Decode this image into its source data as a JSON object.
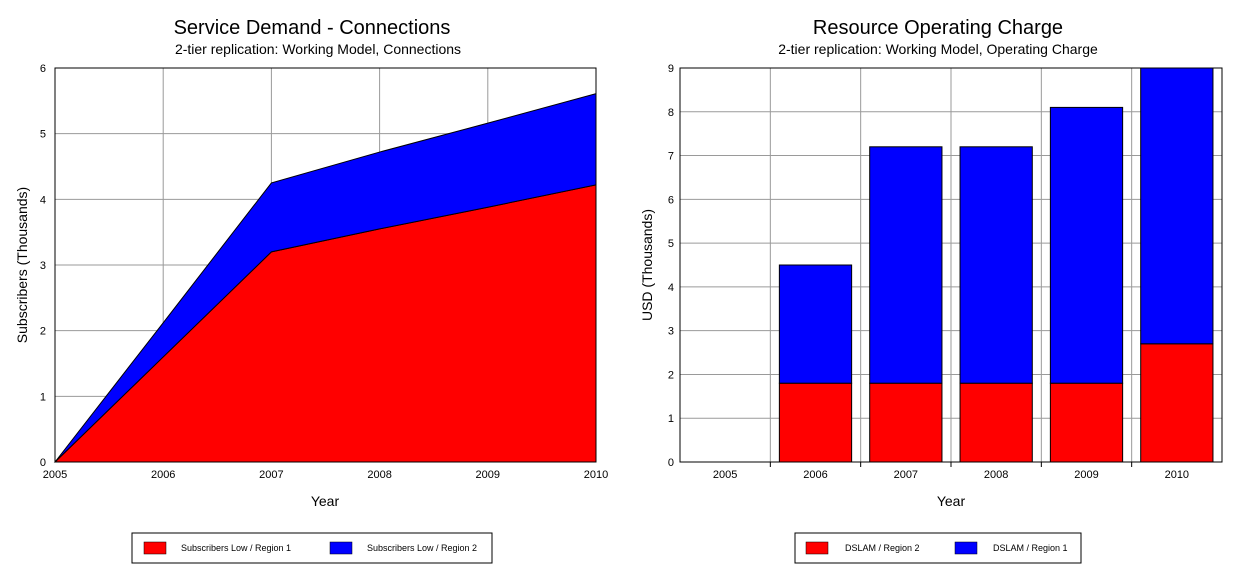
{
  "chart_data": [
    {
      "type": "area",
      "title": "Service Demand - Connections",
      "subtitle": "2-tier replication: Working Model, Connections",
      "xlabel": "Year",
      "ylabel": "Subscribers  (Thousands)",
      "x": [
        "2005",
        "2006",
        "2007",
        "2008",
        "2009",
        "2010"
      ],
      "ylim": [
        0,
        6
      ],
      "yticks": [
        "0",
        "1",
        "2",
        "3",
        "4",
        "5",
        "6"
      ],
      "stacked": true,
      "grid": true,
      "legend_position": "bottom",
      "series": [
        {
          "name": "Subscribers Low / Region 1",
          "color": "#ff0000",
          "values": [
            0,
            1.6,
            3.2,
            3.55,
            3.88,
            4.22
          ]
        },
        {
          "name": "Subscribers Low / Region 2",
          "color": "#0000ff",
          "values": [
            0,
            0.52,
            1.05,
            1.17,
            1.28,
            1.39
          ]
        }
      ]
    },
    {
      "type": "bar",
      "title": "Resource Operating Charge",
      "subtitle": "2-tier replication: Working Model, Operating Charge",
      "xlabel": "Year",
      "ylabel": "USD  (Thousands)",
      "categories": [
        "2005",
        "2006",
        "2007",
        "2008",
        "2009",
        "2010"
      ],
      "ylim": [
        0,
        9
      ],
      "yticks": [
        "0",
        "1",
        "2",
        "3",
        "4",
        "5",
        "6",
        "7",
        "8",
        "9"
      ],
      "stacked": true,
      "grid": true,
      "legend_position": "bottom",
      "series": [
        {
          "name": "DSLAM / Region 2",
          "color": "#ff0000",
          "values": [
            0,
            1.8,
            1.8,
            1.8,
            1.8,
            2.7
          ]
        },
        {
          "name": "DSLAM / Region 1",
          "color": "#0000ff",
          "values": [
            0,
            2.7,
            5.4,
            5.4,
            6.3,
            6.3
          ]
        }
      ]
    }
  ]
}
